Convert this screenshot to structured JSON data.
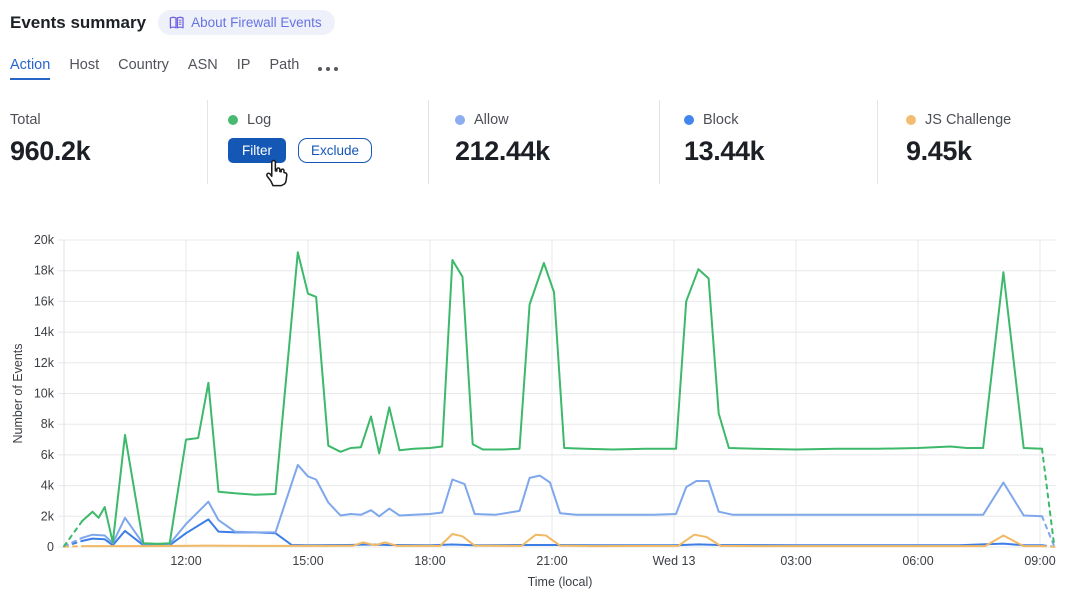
{
  "header": {
    "title": "Events summary",
    "about_badge": "About Firewall Events"
  },
  "tabs": {
    "items": [
      {
        "label": "Action",
        "active": true
      },
      {
        "label": "Host"
      },
      {
        "label": "Country"
      },
      {
        "label": "ASN"
      },
      {
        "label": "IP"
      },
      {
        "label": "Path"
      }
    ]
  },
  "stats": {
    "total": {
      "label": "Total",
      "value": "960.2k"
    },
    "log": {
      "label": "Log",
      "dot_color": "#47BA70",
      "filter_label": "Filter",
      "exclude_label": "Exclude"
    },
    "allow": {
      "label": "Allow",
      "value": "212.44k",
      "dot_color": "#8AAEF0"
    },
    "block": {
      "label": "Block",
      "value": "13.44k",
      "dot_color": "#4285EC"
    },
    "js_challenge": {
      "label": "JS Challenge",
      "value": "9.45k",
      "dot_color": "#F2BC72"
    }
  },
  "chart_data": {
    "type": "line",
    "title": "",
    "xlabel": "Time (local)",
    "ylabel": "Number of Events",
    "x_unit_hours_from": "Tue 09:00 local",
    "xlim": [
      0,
      24.35
    ],
    "ylim": [
      0,
      20000
    ],
    "grid": true,
    "legend_position": "stat-cards-above",
    "y_ticks": [
      {
        "v": 0,
        "label": "0"
      },
      {
        "v": 2000,
        "label": "2k"
      },
      {
        "v": 4000,
        "label": "4k"
      },
      {
        "v": 6000,
        "label": "6k"
      },
      {
        "v": 8000,
        "label": "8k"
      },
      {
        "v": 10000,
        "label": "10k"
      },
      {
        "v": 12000,
        "label": "12k"
      },
      {
        "v": 14000,
        "label": "14k"
      },
      {
        "v": 16000,
        "label": "16k"
      },
      {
        "v": 18000,
        "label": "18k"
      },
      {
        "v": 20000,
        "label": "20k"
      }
    ],
    "x_ticks": [
      {
        "t": 3,
        "label": "12:00"
      },
      {
        "t": 6,
        "label": "15:00"
      },
      {
        "t": 9,
        "label": "18:00"
      },
      {
        "t": 12,
        "label": "21:00"
      },
      {
        "t": 15,
        "label": "Wed 13"
      },
      {
        "t": 18,
        "label": "03:00"
      },
      {
        "t": 21,
        "label": "06:00"
      },
      {
        "t": 24,
        "label": "09:00"
      }
    ],
    "draw_order": [
      2,
      1,
      3,
      0
    ],
    "series": [
      {
        "name": "Log",
        "color": "#3CB96A",
        "solid_from": 0.45,
        "solid_to": 24.05,
        "points": [
          [
            0,
            50
          ],
          [
            0.45,
            1700
          ],
          [
            0.7,
            2300
          ],
          [
            0.85,
            1900
          ],
          [
            1.0,
            2600
          ],
          [
            1.2,
            300
          ],
          [
            1.5,
            7300
          ],
          [
            1.95,
            250
          ],
          [
            2.3,
            200
          ],
          [
            2.6,
            250
          ],
          [
            3.0,
            7000
          ],
          [
            3.3,
            7100
          ],
          [
            3.55,
            10700
          ],
          [
            3.8,
            3600
          ],
          [
            4.2,
            3500
          ],
          [
            4.7,
            3400
          ],
          [
            5.2,
            3450
          ],
          [
            5.75,
            19200
          ],
          [
            6.0,
            16500
          ],
          [
            6.2,
            16300
          ],
          [
            6.5,
            6600
          ],
          [
            6.8,
            6200
          ],
          [
            7.05,
            6450
          ],
          [
            7.3,
            6500
          ],
          [
            7.55,
            8500
          ],
          [
            7.75,
            6100
          ],
          [
            8.0,
            9100
          ],
          [
            8.25,
            6300
          ],
          [
            8.6,
            6400
          ],
          [
            9.0,
            6450
          ],
          [
            9.3,
            6550
          ],
          [
            9.55,
            18700
          ],
          [
            9.8,
            17600
          ],
          [
            10.05,
            6700
          ],
          [
            10.3,
            6350
          ],
          [
            10.8,
            6350
          ],
          [
            11.2,
            6400
          ],
          [
            11.45,
            15800
          ],
          [
            11.8,
            18500
          ],
          [
            12.05,
            16600
          ],
          [
            12.3,
            6450
          ],
          [
            12.8,
            6400
          ],
          [
            13.5,
            6350
          ],
          [
            14.3,
            6400
          ],
          [
            15.05,
            6400
          ],
          [
            15.3,
            16000
          ],
          [
            15.6,
            18100
          ],
          [
            15.85,
            17500
          ],
          [
            16.1,
            8700
          ],
          [
            16.35,
            6450
          ],
          [
            17.0,
            6400
          ],
          [
            18.0,
            6350
          ],
          [
            19.0,
            6400
          ],
          [
            20.0,
            6400
          ],
          [
            21.0,
            6450
          ],
          [
            21.8,
            6550
          ],
          [
            22.2,
            6450
          ],
          [
            22.6,
            6450
          ],
          [
            23.1,
            17900
          ],
          [
            23.6,
            6450
          ],
          [
            24.05,
            6400
          ],
          [
            24.35,
            100
          ]
        ]
      },
      {
        "name": "Allow",
        "color": "#7EA7EC",
        "solid_from": 0.45,
        "solid_to": 24.05,
        "points": [
          [
            0,
            50
          ],
          [
            0.45,
            600
          ],
          [
            0.7,
            800
          ],
          [
            1.0,
            750
          ],
          [
            1.2,
            250
          ],
          [
            1.5,
            1900
          ],
          [
            1.95,
            200
          ],
          [
            2.6,
            200
          ],
          [
            3.0,
            1500
          ],
          [
            3.55,
            2950
          ],
          [
            3.8,
            1750
          ],
          [
            4.2,
            1000
          ],
          [
            4.7,
            950
          ],
          [
            5.2,
            950
          ],
          [
            5.75,
            5350
          ],
          [
            6.0,
            4600
          ],
          [
            6.2,
            4400
          ],
          [
            6.5,
            2900
          ],
          [
            6.8,
            2050
          ],
          [
            7.05,
            2150
          ],
          [
            7.3,
            2100
          ],
          [
            7.55,
            2400
          ],
          [
            7.75,
            2000
          ],
          [
            8.0,
            2500
          ],
          [
            8.25,
            2050
          ],
          [
            8.6,
            2100
          ],
          [
            9.0,
            2150
          ],
          [
            9.3,
            2250
          ],
          [
            9.55,
            4400
          ],
          [
            9.85,
            4100
          ],
          [
            10.1,
            2150
          ],
          [
            10.6,
            2100
          ],
          [
            11.2,
            2350
          ],
          [
            11.45,
            4500
          ],
          [
            11.7,
            4650
          ],
          [
            11.95,
            4200
          ],
          [
            12.2,
            2200
          ],
          [
            12.6,
            2100
          ],
          [
            13.5,
            2100
          ],
          [
            14.5,
            2100
          ],
          [
            15.05,
            2150
          ],
          [
            15.3,
            3900
          ],
          [
            15.55,
            4300
          ],
          [
            15.85,
            4300
          ],
          [
            16.1,
            2300
          ],
          [
            16.45,
            2100
          ],
          [
            17.5,
            2100
          ],
          [
            19.0,
            2100
          ],
          [
            21.0,
            2100
          ],
          [
            22.6,
            2100
          ],
          [
            23.1,
            4200
          ],
          [
            23.6,
            2050
          ],
          [
            24.05,
            2000
          ],
          [
            24.35,
            50
          ]
        ]
      },
      {
        "name": "Block",
        "color": "#3D7EE6",
        "solid_from": 0.45,
        "solid_to": 24.05,
        "points": [
          [
            0,
            30
          ],
          [
            0.45,
            400
          ],
          [
            0.7,
            550
          ],
          [
            1.0,
            500
          ],
          [
            1.2,
            120
          ],
          [
            1.5,
            1050
          ],
          [
            1.95,
            120
          ],
          [
            2.6,
            120
          ],
          [
            3.0,
            900
          ],
          [
            3.55,
            1800
          ],
          [
            3.8,
            1000
          ],
          [
            4.2,
            950
          ],
          [
            4.7,
            950
          ],
          [
            5.2,
            900
          ],
          [
            5.6,
            130
          ],
          [
            6.0,
            110
          ],
          [
            7.0,
            130
          ],
          [
            7.5,
            160
          ],
          [
            8.0,
            130
          ],
          [
            9.0,
            110
          ],
          [
            9.55,
            160
          ],
          [
            10.1,
            110
          ],
          [
            11.45,
            130
          ],
          [
            12.05,
            130
          ],
          [
            13.0,
            110
          ],
          [
            15.05,
            110
          ],
          [
            15.6,
            170
          ],
          [
            16.1,
            130
          ],
          [
            18.0,
            110
          ],
          [
            20.0,
            110
          ],
          [
            22.0,
            110
          ],
          [
            23.1,
            220
          ],
          [
            23.6,
            110
          ],
          [
            24.05,
            110
          ],
          [
            24.35,
            20
          ]
        ]
      },
      {
        "name": "JS Challenge",
        "color": "#F2B964",
        "solid_from": 0.45,
        "solid_to": 24.05,
        "points": [
          [
            0,
            20
          ],
          [
            0.45,
            60
          ],
          [
            2.0,
            60
          ],
          [
            3.55,
            90
          ],
          [
            5.0,
            70
          ],
          [
            6.5,
            70
          ],
          [
            7.1,
            80
          ],
          [
            7.35,
            300
          ],
          [
            7.65,
            120
          ],
          [
            7.9,
            300
          ],
          [
            8.2,
            70
          ],
          [
            9.25,
            70
          ],
          [
            9.55,
            850
          ],
          [
            9.8,
            700
          ],
          [
            10.1,
            90
          ],
          [
            11.25,
            70
          ],
          [
            11.6,
            800
          ],
          [
            11.85,
            750
          ],
          [
            12.2,
            90
          ],
          [
            13.0,
            60
          ],
          [
            15.1,
            70
          ],
          [
            15.5,
            800
          ],
          [
            15.8,
            650
          ],
          [
            16.15,
            70
          ],
          [
            17.0,
            60
          ],
          [
            19.0,
            60
          ],
          [
            21.0,
            60
          ],
          [
            22.65,
            60
          ],
          [
            23.1,
            750
          ],
          [
            23.6,
            60
          ],
          [
            24.05,
            60
          ],
          [
            24.35,
            10
          ]
        ]
      }
    ]
  }
}
